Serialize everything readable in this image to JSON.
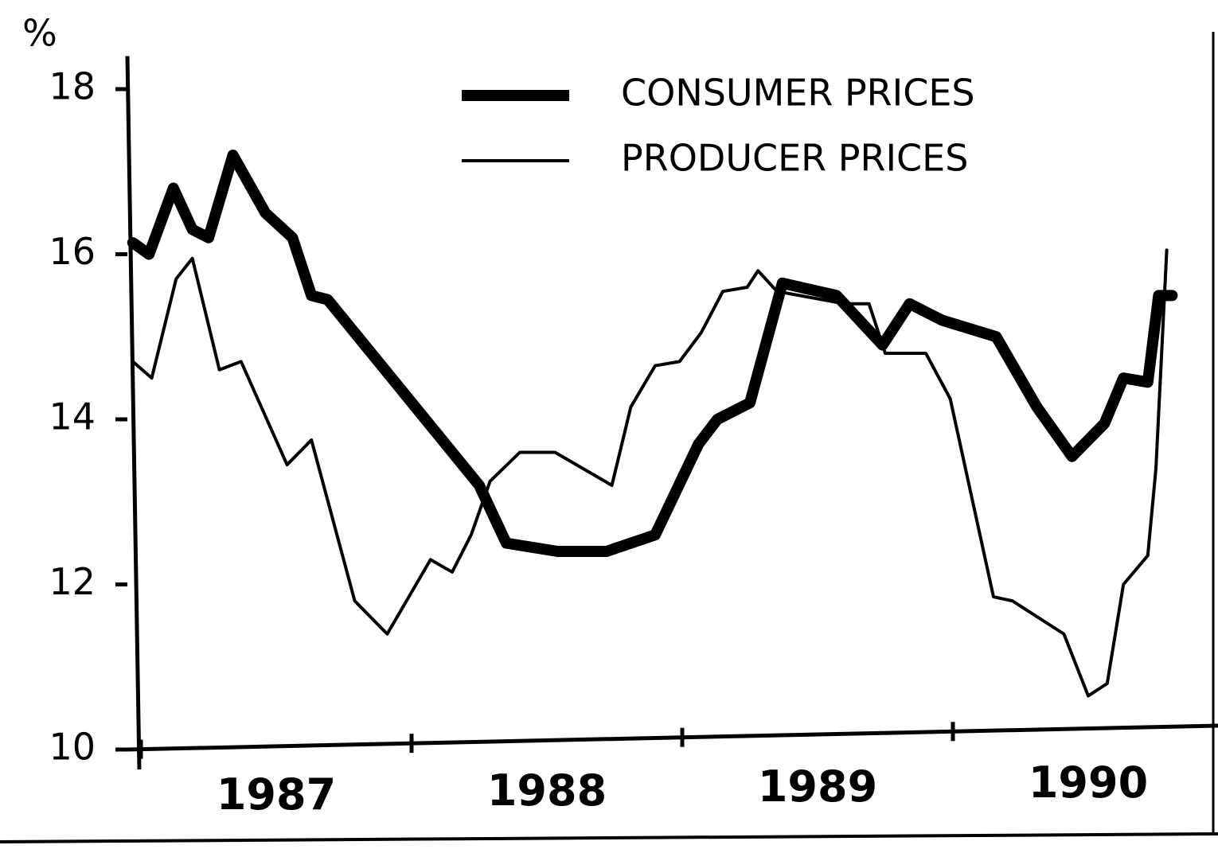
{
  "chart_data": {
    "type": "line",
    "y_label": "%",
    "legend": "upper right",
    "xlim": [
      1986.95,
      1990.95
    ],
    "xticks": [
      {
        "value": 1987.5,
        "label": "1987"
      },
      {
        "value": 1988.5,
        "label": "1988"
      },
      {
        "value": 1989.5,
        "label": "1989"
      },
      {
        "value": 1990.5,
        "label": "1990"
      }
    ],
    "ylim": [
      10,
      18.4
    ],
    "yticks": [
      10,
      12,
      14,
      16,
      18
    ],
    "series": [
      {
        "name": "CONSUMER PRICES",
        "color": "#000000",
        "width": 14,
        "x": [
          1986.97,
          1987.03,
          1987.12,
          1987.19,
          1987.25,
          1987.34,
          1987.46,
          1987.56,
          1987.63,
          1987.69,
          1988.25,
          1988.35,
          1988.54,
          1988.72,
          1988.9,
          1989.06,
          1989.13,
          1989.25,
          1989.37,
          1989.57,
          1989.74,
          1989.84,
          1989.96,
          1990.16,
          1990.31,
          1990.44,
          1990.56,
          1990.63,
          1990.72,
          1990.76,
          1990.81
        ],
        "values": [
          16.14,
          16.0,
          16.8,
          16.3,
          16.2,
          17.2,
          16.5,
          16.2,
          15.5,
          15.45,
          13.2,
          12.5,
          12.4,
          12.4,
          12.6,
          13.7,
          14.0,
          14.2,
          15.65,
          15.5,
          14.9,
          15.4,
          15.2,
          15.0,
          14.15,
          13.55,
          13.95,
          14.5,
          14.45,
          15.5,
          15.5
        ]
      },
      {
        "name": "PRODUCER PRICES",
        "color": "#000000",
        "width": 4,
        "x": [
          1986.97,
          1987.04,
          1987.13,
          1987.19,
          1987.29,
          1987.37,
          1987.54,
          1987.63,
          1987.79,
          1987.91,
          1988.07,
          1988.15,
          1988.22,
          1988.29,
          1988.4,
          1988.53,
          1988.74,
          1988.81,
          1988.9,
          1988.99,
          1989.07,
          1989.15,
          1989.24,
          1989.28,
          1989.35,
          1989.6,
          1989.69,
          1989.75,
          1989.9,
          1989.99,
          1990.15,
          1990.22,
          1990.41,
          1990.5,
          1990.57,
          1990.63,
          1990.72,
          1990.75,
          1990.79
        ],
        "values": [
          14.7,
          14.5,
          15.7,
          15.95,
          14.6,
          14.7,
          13.45,
          13.75,
          11.8,
          11.4,
          12.3,
          12.15,
          12.6,
          13.25,
          13.6,
          13.6,
          13.2,
          14.15,
          14.65,
          14.7,
          15.05,
          15.55,
          15.6,
          15.8,
          15.55,
          15.4,
          15.4,
          14.8,
          14.8,
          14.25,
          11.85,
          11.8,
          11.4,
          10.65,
          10.8,
          12.0,
          12.35,
          13.4,
          16.05
        ]
      }
    ]
  }
}
